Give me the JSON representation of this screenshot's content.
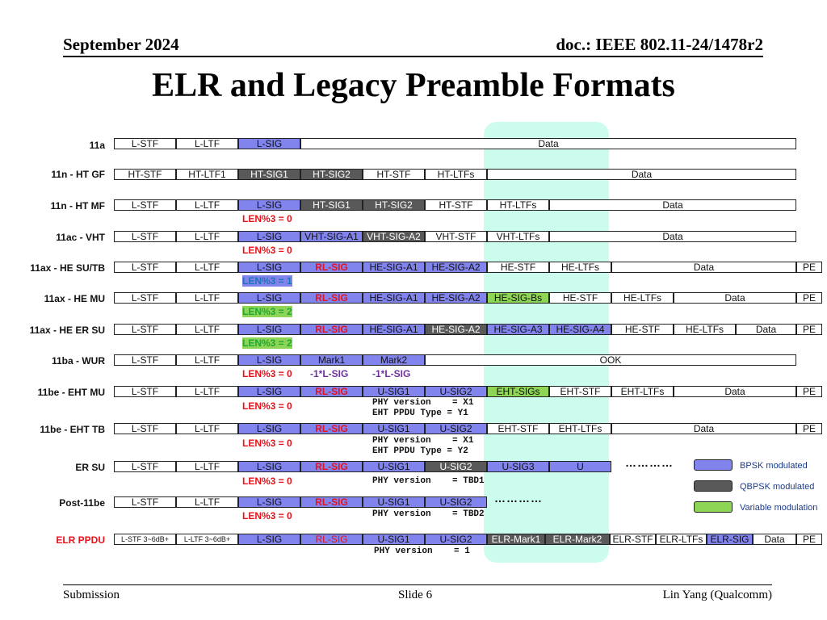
{
  "header": {
    "date": "September 2024",
    "doc": "doc.: IEEE 802.11-24/1478r2"
  },
  "title": "ELR and Legacy Preamble Formats",
  "footer": {
    "left": "Submission",
    "center": "Slide 6",
    "right": "Lin Yang (Qualcomm)"
  },
  "rows": [
    {
      "label": "11a",
      "fields": [
        "L-STF",
        "L-LTF",
        "L-SIG",
        "Data"
      ]
    },
    {
      "label": "11n - HT GF",
      "fields": [
        "HT-STF",
        "HT-LTF1",
        "HT-SIG1",
        "HT-SIG2",
        "HT-STF",
        "HT-LTFs",
        "Data"
      ]
    },
    {
      "label": "11n - HT MF",
      "fields": [
        "L-STF",
        "L-LTF",
        "L-SIG",
        "HT-SIG1",
        "HT-SIG2",
        "HT-STF",
        "HT-LTFs",
        "Data"
      ],
      "notes": [
        "LEN%3 = 0"
      ]
    },
    {
      "label": "11ac - VHT",
      "fields": [
        "L-STF",
        "L-LTF",
        "L-SIG",
        "VHT-SIG-A1",
        "VHT-SIG-A2",
        "VHT-STF",
        "VHT-LTFs",
        "Data"
      ],
      "notes": [
        "LEN%3 = 0"
      ]
    },
    {
      "label": "11ax - HE SU/TB",
      "fields": [
        "L-STF",
        "L-LTF",
        "L-SIG",
        "RL-SIG",
        "HE-SIG-A1",
        "HE-SIG-A2",
        "HE-STF",
        "HE-LTFs",
        "Data",
        "PE"
      ],
      "notes": [
        "LEN%3 = 1"
      ]
    },
    {
      "label": "11ax - HE MU",
      "fields": [
        "L-STF",
        "L-LTF",
        "L-SIG",
        "RL-SIG",
        "HE-SIG-A1",
        "HE-SIG-A2",
        "HE-SIG-Bs",
        "HE-STF",
        "HE-LTFs",
        "Data",
        "PE"
      ],
      "notes": [
        "LEN%3 = 2"
      ]
    },
    {
      "label": "11ax - HE ER SU",
      "fields": [
        "L-STF",
        "L-LTF",
        "L-SIG",
        "RL-SIG",
        "HE-SIG-A1",
        "HE-SIG-A2",
        "HE-SIG-A3",
        "HE-SIG-A4",
        "HE-STF",
        "HE-LTFs",
        "Data",
        "PE"
      ],
      "notes": [
        "LEN%3 = 2"
      ]
    },
    {
      "label": "11ba - WUR",
      "fields": [
        "L-STF",
        "L-LTF",
        "L-SIG",
        "Mark1",
        "Mark2",
        "OOK"
      ],
      "notes": [
        "LEN%3 = 0",
        "-1*L-SIG",
        "-1*L-SIG"
      ]
    },
    {
      "label": "11be - EHT MU",
      "fields": [
        "L-STF",
        "L-LTF",
        "L-SIG",
        "RL-SIG",
        "U-SIG1",
        "U-SIG2",
        "EHT-SIGs",
        "EHT-STF",
        "EHT-LTFs",
        "Data",
        "PE"
      ],
      "notes": [
        "LEN%3 = 0",
        "PHY version    = X1\nEHT PPDU Type = Y1"
      ]
    },
    {
      "label": "11be - EHT TB",
      "fields": [
        "L-STF",
        "L-LTF",
        "L-SIG",
        "RL-SIG",
        "U-SIG1",
        "U-SIG2",
        "EHT-STF",
        "EHT-LTFs",
        "Data",
        "PE"
      ],
      "notes": [
        "LEN%3 = 0",
        "PHY version    = X1\nEHT PPDU Type = Y2"
      ]
    },
    {
      "label": "ER SU",
      "fields": [
        "L-STF",
        "L-LTF",
        "L-SIG",
        "RL-SIG",
        "U-SIG1",
        "U-SIG2",
        "U-SIG3",
        "U"
      ],
      "notes": [
        "LEN%3 = 0",
        "PHY version    = TBD1"
      ],
      "dots": "…………"
    },
    {
      "label": "Post-11be",
      "fields": [
        "L-STF",
        "L-LTF",
        "L-SIG",
        "RL-SIG",
        "U-SIG1",
        "U-SIG2"
      ],
      "notes": [
        "LEN%3 = 0",
        "PHY version    = TBD2"
      ],
      "dots": "…………"
    },
    {
      "label": "ELR PPDU",
      "fields": [
        "L-STF 3~6dB+",
        "L-LTF 3~6dB+",
        "L-SIG",
        "RL-SIG",
        "U-SIG1",
        "U-SIG2",
        "ELR-Mark1",
        "ELR-Mark2",
        "ELR-STF",
        "ELR-LTFs",
        "ELR-SIG",
        "Data",
        "PE"
      ],
      "notes": [
        "PHY version    = 1"
      ]
    }
  ],
  "legend": [
    {
      "label": "BPSK modulated",
      "color": "#8284ee"
    },
    {
      "label": "QBPSK modulated",
      "color": "#595959"
    },
    {
      "label": "Variable modulation",
      "color": "#8ed455"
    }
  ]
}
